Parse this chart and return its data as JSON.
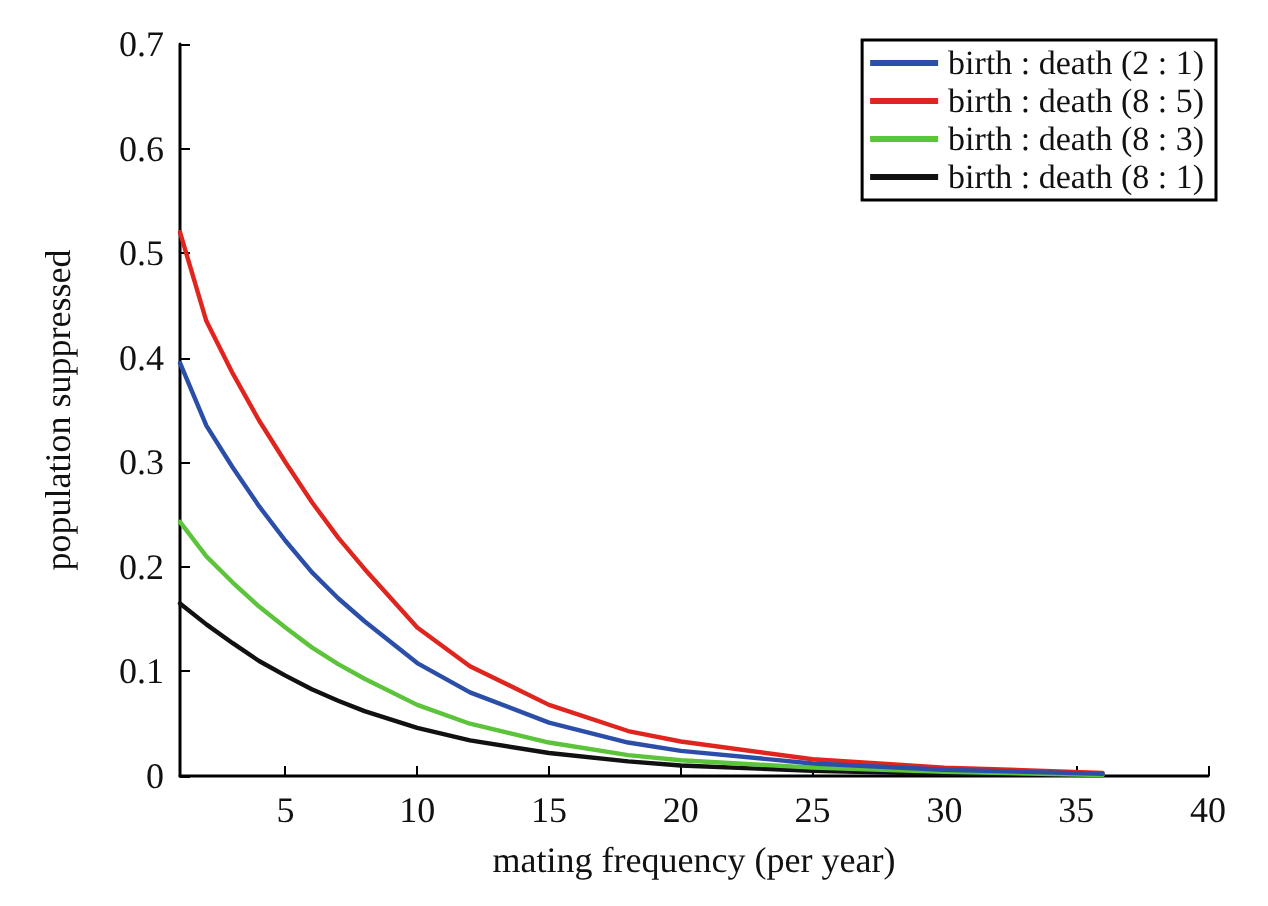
{
  "chart_data": {
    "type": "line",
    "xlabel": "mating frequency (per year)",
    "ylabel": "population suppressed",
    "x": [
      1,
      2,
      3,
      4,
      5,
      6,
      7,
      8,
      10,
      12,
      15,
      18,
      20,
      25,
      30,
      36
    ],
    "series": [
      {
        "name": "birth : death (2 : 1)",
        "color": "#2b4fa8",
        "values": [
          0.395,
          0.335,
          0.295,
          0.258,
          0.225,
          0.195,
          0.17,
          0.148,
          0.108,
          0.08,
          0.051,
          0.032,
          0.024,
          0.012,
          0.006,
          0.002
        ]
      },
      {
        "name": "birth : death (8 : 5)",
        "color": "#e0251f",
        "values": [
          0.52,
          0.435,
          0.385,
          0.34,
          0.3,
          0.262,
          0.228,
          0.198,
          0.142,
          0.105,
          0.068,
          0.043,
          0.033,
          0.016,
          0.008,
          0.003
        ]
      },
      {
        "name": "birth : death (8 : 3)",
        "color": "#5cc43a",
        "values": [
          0.243,
          0.21,
          0.185,
          0.162,
          0.142,
          0.123,
          0.107,
          0.093,
          0.068,
          0.05,
          0.032,
          0.02,
          0.015,
          0.008,
          0.004,
          0.001
        ]
      },
      {
        "name": "birth : death (8 : 1)",
        "color": "#111111",
        "values": [
          0.165,
          0.145,
          0.127,
          0.11,
          0.096,
          0.083,
          0.072,
          0.062,
          0.046,
          0.034,
          0.022,
          0.014,
          0.01,
          0.005,
          0.002,
          0.001
        ]
      }
    ],
    "xlim": [
      1,
      40
    ],
    "xticks": [
      5,
      10,
      15,
      20,
      25,
      30,
      35,
      40
    ],
    "ylim": [
      0,
      0.7
    ],
    "yticks": [
      0,
      0.1,
      0.2,
      0.3,
      0.4,
      0.5,
      0.6,
      0.7
    ],
    "grid": false,
    "legend": "top right",
    "marker": "none",
    "line_style": "solid"
  }
}
